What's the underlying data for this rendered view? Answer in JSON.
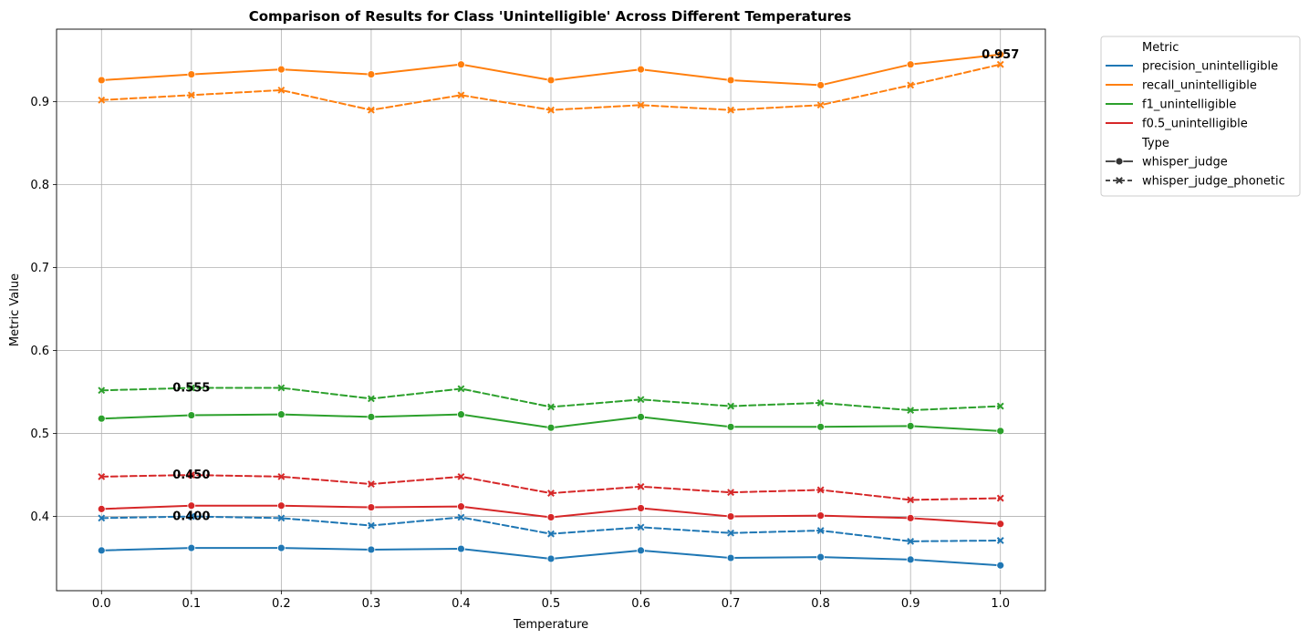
{
  "chart_data": {
    "type": "line",
    "title": "Comparison of Results for Class 'Unintelligible' Across Different Temperatures",
    "xlabel": "Temperature",
    "ylabel": "Metric Value",
    "x": [
      0.0,
      0.1,
      0.2,
      0.3,
      0.4,
      0.5,
      0.6,
      0.7,
      0.8,
      0.9,
      1.0
    ],
    "x_tick_labels": [
      "0.0",
      "0.1",
      "0.2",
      "0.3",
      "0.4",
      "0.5",
      "0.6",
      "0.7",
      "0.8",
      "0.9",
      "1.0"
    ],
    "xlim": [
      -0.05,
      1.05
    ],
    "y_ticks": [
      0.4,
      0.5,
      0.6,
      0.7,
      0.8,
      0.9
    ],
    "y_tick_labels": [
      "0.4",
      "0.5",
      "0.6",
      "0.7",
      "0.8",
      "0.9"
    ],
    "ylim": [
      0.3105,
      0.9875
    ],
    "grid": true,
    "legend_placement": "outside-top-right",
    "legend": {
      "metric_header": "Metric",
      "type_header": "Type",
      "metrics": [
        {
          "name": "precision_unintelligible",
          "color": "#1f77b4"
        },
        {
          "name": "recall_unintelligible",
          "color": "#ff7f0e"
        },
        {
          "name": "f1_unintelligible",
          "color": "#2ca02c"
        },
        {
          "name": "f0.5_unintelligible",
          "color": "#d62728"
        }
      ],
      "types": [
        {
          "name": "whisper_judge",
          "dash": "solid",
          "marker": "circle"
        },
        {
          "name": "whisper_judge_phonetic",
          "dash": "dashed",
          "marker": "x"
        }
      ]
    },
    "series": [
      {
        "metric": "precision_unintelligible",
        "type": "whisper_judge",
        "color": "#1f77b4",
        "dash": "solid",
        "marker": "circle",
        "values": [
          0.359,
          0.362,
          0.362,
          0.36,
          0.361,
          0.349,
          0.359,
          0.35,
          0.351,
          0.348,
          0.341
        ]
      },
      {
        "metric": "precision_unintelligible",
        "type": "whisper_judge_phonetic",
        "color": "#1f77b4",
        "dash": "dashed",
        "marker": "x",
        "values": [
          0.398,
          0.4,
          0.398,
          0.389,
          0.399,
          0.379,
          0.387,
          0.38,
          0.383,
          0.37,
          0.371
        ]
      },
      {
        "metric": "recall_unintelligible",
        "type": "whisper_judge",
        "color": "#ff7f0e",
        "dash": "solid",
        "marker": "circle",
        "values": [
          0.926,
          0.933,
          0.939,
          0.933,
          0.945,
          0.926,
          0.939,
          0.926,
          0.92,
          0.945,
          0.957
        ]
      },
      {
        "metric": "recall_unintelligible",
        "type": "whisper_judge_phonetic",
        "color": "#ff7f0e",
        "dash": "dashed",
        "marker": "x",
        "values": [
          0.902,
          0.908,
          0.914,
          0.89,
          0.908,
          0.89,
          0.896,
          0.89,
          0.896,
          0.92,
          0.945
        ]
      },
      {
        "metric": "f1_unintelligible",
        "type": "whisper_judge",
        "color": "#2ca02c",
        "dash": "solid",
        "marker": "circle",
        "values": [
          0.518,
          0.522,
          0.523,
          0.52,
          0.523,
          0.507,
          0.52,
          0.508,
          0.508,
          0.509,
          0.503
        ]
      },
      {
        "metric": "f1_unintelligible",
        "type": "whisper_judge_phonetic",
        "color": "#2ca02c",
        "dash": "dashed",
        "marker": "x",
        "values": [
          0.552,
          0.555,
          0.555,
          0.542,
          0.554,
          0.532,
          0.541,
          0.533,
          0.537,
          0.528,
          0.533
        ]
      },
      {
        "metric": "f0.5_unintelligible",
        "type": "whisper_judge",
        "color": "#d62728",
        "dash": "solid",
        "marker": "circle",
        "values": [
          0.409,
          0.413,
          0.413,
          0.411,
          0.412,
          0.399,
          0.41,
          0.4,
          0.401,
          0.398,
          0.391
        ]
      },
      {
        "metric": "f0.5_unintelligible",
        "type": "whisper_judge_phonetic",
        "color": "#d62728",
        "dash": "dashed",
        "marker": "x",
        "values": [
          0.448,
          0.45,
          0.448,
          0.439,
          0.448,
          0.428,
          0.436,
          0.429,
          0.432,
          0.42,
          0.422
        ]
      }
    ],
    "annotations": [
      {
        "text": "0.957",
        "x": 1.0,
        "y": 0.957
      },
      {
        "text": "0.555",
        "x": 0.1,
        "y": 0.555
      },
      {
        "text": "0.450",
        "x": 0.1,
        "y": 0.45
      },
      {
        "text": "0.400",
        "x": 0.1,
        "y": 0.4
      }
    ]
  }
}
